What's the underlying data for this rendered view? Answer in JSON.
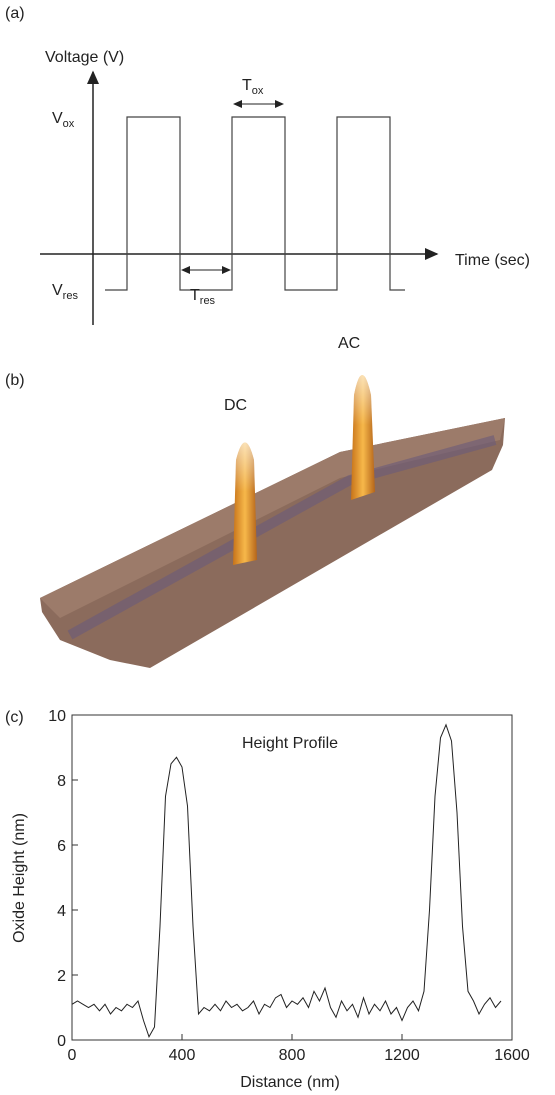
{
  "panel_a": {
    "label": "(a)",
    "y_axis_label": "Voltage (V)",
    "x_axis_label": "Time (sec)",
    "v_ox": {
      "base": "V",
      "sub": "ox"
    },
    "v_res": {
      "base": "V",
      "sub": "res"
    },
    "t_ox": {
      "base": "T",
      "sub": "ox"
    },
    "t_res": {
      "base": "T",
      "sub": "res"
    }
  },
  "panel_b": {
    "label": "(b)",
    "dc": "DC",
    "ac": "AC"
  },
  "chart_data": {
    "type": "line",
    "label": "(c)",
    "title": "Height Profile",
    "x_label": "Distance (nm)",
    "y_label": "Oxide Height (nm)",
    "color": "#222",
    "x": [
      0,
      20,
      40,
      60,
      80,
      100,
      120,
      140,
      160,
      180,
      200,
      220,
      240,
      260,
      280,
      300,
      320,
      340,
      360,
      380,
      400,
      420,
      440,
      460,
      480,
      500,
      520,
      540,
      560,
      580,
      600,
      620,
      640,
      660,
      680,
      700,
      720,
      740,
      760,
      780,
      800,
      820,
      840,
      860,
      880,
      900,
      920,
      940,
      960,
      980,
      1000,
      1020,
      1040,
      1060,
      1080,
      1100,
      1120,
      1140,
      1160,
      1180,
      1200,
      1220,
      1240,
      1260,
      1280,
      1300,
      1320,
      1340,
      1360,
      1380,
      1400,
      1420,
      1440,
      1460,
      1480,
      1500,
      1520,
      1540,
      1560
    ],
    "values": [
      1.1,
      1.2,
      1.1,
      1.0,
      1.1,
      0.9,
      1.1,
      0.8,
      1.0,
      0.9,
      1.1,
      1.0,
      1.2,
      0.6,
      0.1,
      0.4,
      3.5,
      7.5,
      8.5,
      8.7,
      8.4,
      7.2,
      3.5,
      0.8,
      1.0,
      0.9,
      1.1,
      0.9,
      1.2,
      1.0,
      1.1,
      0.9,
      1.0,
      1.2,
      0.8,
      1.1,
      1.0,
      1.3,
      1.4,
      1.0,
      1.2,
      1.1,
      1.3,
      1.0,
      1.5,
      1.2,
      1.6,
      1.0,
      0.7,
      1.2,
      0.9,
      1.1,
      0.7,
      1.3,
      0.8,
      1.1,
      0.9,
      1.2,
      0.8,
      1.0,
      0.6,
      1.0,
      1.2,
      0.9,
      1.5,
      4.0,
      7.5,
      9.3,
      9.7,
      9.2,
      7.0,
      3.5,
      1.5,
      1.2,
      0.8,
      1.1,
      1.3,
      1.0,
      1.2
    ],
    "xlim": [
      0,
      1600
    ],
    "ylim": [
      0,
      10
    ],
    "xticks": [
      0,
      400,
      800,
      1200,
      1600
    ],
    "yticks": [
      0,
      2,
      4,
      6,
      8,
      10
    ]
  }
}
